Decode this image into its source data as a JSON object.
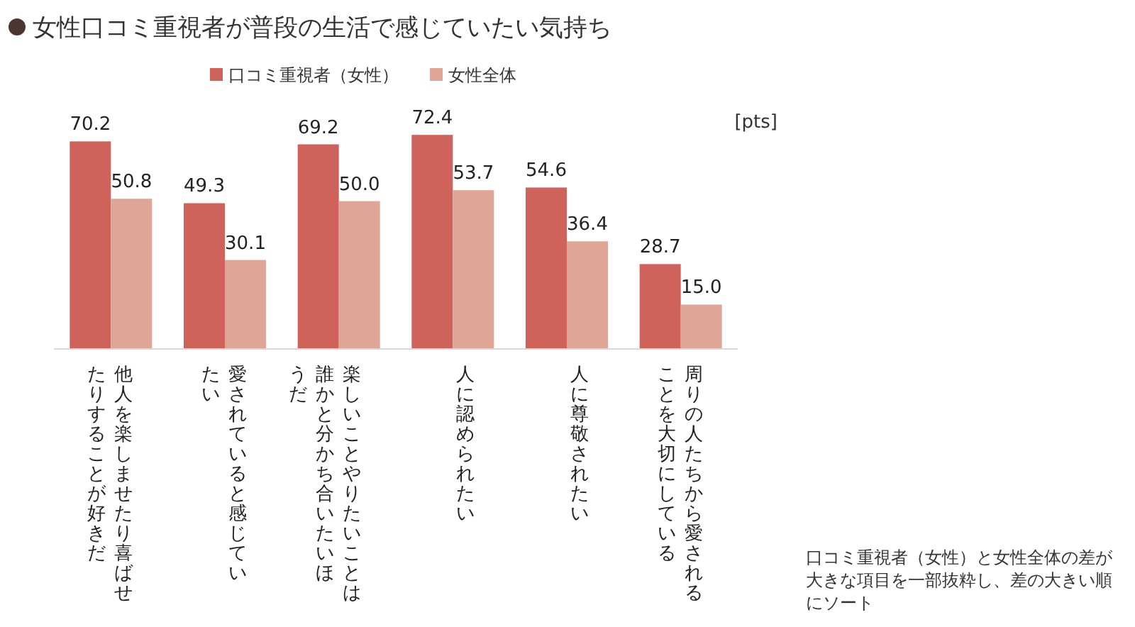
{
  "chart_data": {
    "type": "bar",
    "title": "女性口コミ重視者が普段の生活で感じていたい気持ち",
    "ylabel": "[pts]",
    "categories": [
      "他人を楽しませたり喜ばせたりすることが好きだ",
      "愛されていると感じていたい",
      "楽しいことやりたいことは誰かと分かち合いたいほうだ",
      "人に認められたい",
      "人に尊敬されたい",
      "周りの人たちから愛されることを大切にしている"
    ],
    "series": [
      {
        "name": "口コミ重視者（女性）",
        "color": "#d0625c",
        "values": [
          70.2,
          49.3,
          69.2,
          72.4,
          54.6,
          28.7
        ],
        "value_labels": [
          "70.2",
          "49.3",
          "69.2",
          "72.4",
          "54.6",
          "28.7"
        ]
      },
      {
        "name": "女性全体",
        "color": "#dfa697",
        "values": [
          50.8,
          30.1,
          50.0,
          53.7,
          36.4,
          15.0
        ],
        "value_labels": [
          "50.8",
          "30.1",
          "50.0",
          "53.7",
          "36.4",
          "15.0"
        ]
      }
    ],
    "relative": false,
    "legend": "top",
    "annotations": [
      "口コミ重視者（女性）と女性全体の差が大きな項目を一部抜粋し、差の大きい順にソート"
    ]
  }
}
